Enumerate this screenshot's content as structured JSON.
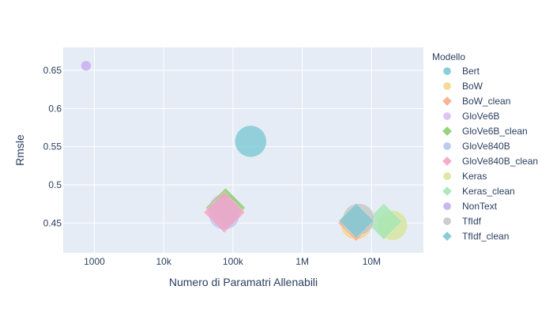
{
  "chart_data": {
    "type": "scatter",
    "xlabel": "Numero di Paramatri Allenabili",
    "ylabel": "Rmsle",
    "x_scale": "log",
    "xlim": [
      355,
      56000000
    ],
    "ylim": [
      0.411,
      0.68
    ],
    "x_ticks": [
      {
        "value": 1000,
        "label": "1000"
      },
      {
        "value": 10000,
        "label": "10k"
      },
      {
        "value": 100000,
        "label": "100k"
      },
      {
        "value": 1000000,
        "label": "1M"
      },
      {
        "value": 10000000,
        "label": "10M"
      }
    ],
    "y_ticks": [
      {
        "value": 0.45,
        "label": "0.45"
      },
      {
        "value": 0.5,
        "label": "0.5"
      },
      {
        "value": 0.55,
        "label": "0.55"
      },
      {
        "value": 0.6,
        "label": "0.6"
      },
      {
        "value": 0.65,
        "label": "0.65"
      }
    ],
    "grid": true,
    "legend_title": "Modello",
    "legend_position": "right",
    "series": [
      {
        "name": "Bert",
        "symbol": "circle",
        "color": "#7cc9d4",
        "x": 180000,
        "y": 0.557,
        "size": 40
      },
      {
        "name": "BoW",
        "symbol": "circle",
        "color": "#f4d58d",
        "x": 6000000,
        "y": 0.449,
        "size": 40
      },
      {
        "name": "BoW_clean",
        "symbol": "diamond",
        "color": "#f6ad8a",
        "x": 6000000,
        "y": 0.45,
        "size": 46
      },
      {
        "name": "GloVe6B",
        "symbol": "circle",
        "color": "#dcbcf3",
        "x": 75000,
        "y": 0.468,
        "size": 40
      },
      {
        "name": "GloVe6B_clean",
        "symbol": "diamond",
        "color": "#8ccd6e",
        "x": 78000,
        "y": 0.47,
        "size": 50
      },
      {
        "name": "GloVe840B",
        "symbol": "circle",
        "color": "#b4c6f0",
        "x": 75000,
        "y": 0.462,
        "size": 40
      },
      {
        "name": "GloVe840B_clean",
        "symbol": "diamond",
        "color": "#f5a3c4",
        "x": 75000,
        "y": 0.464,
        "size": 52
      },
      {
        "name": "Keras",
        "symbol": "circle",
        "color": "#d8e59a",
        "x": 20000000,
        "y": 0.447,
        "size": 38
      },
      {
        "name": "Keras_clean",
        "symbol": "diamond",
        "color": "#a5e6b4",
        "x": 15000000,
        "y": 0.452,
        "size": 46
      },
      {
        "name": "NonText",
        "symbol": "circle",
        "color": "#c5adf2",
        "x": 760,
        "y": 0.656,
        "size": 13
      },
      {
        "name": "TfIdf",
        "symbol": "circle",
        "color": "#c6c6c6",
        "x": 6500000,
        "y": 0.455,
        "size": 40
      },
      {
        "name": "TfIdf_clean",
        "symbol": "diamond",
        "color": "#7dc8d4",
        "x": 6000000,
        "y": 0.453,
        "size": 44
      }
    ]
  }
}
